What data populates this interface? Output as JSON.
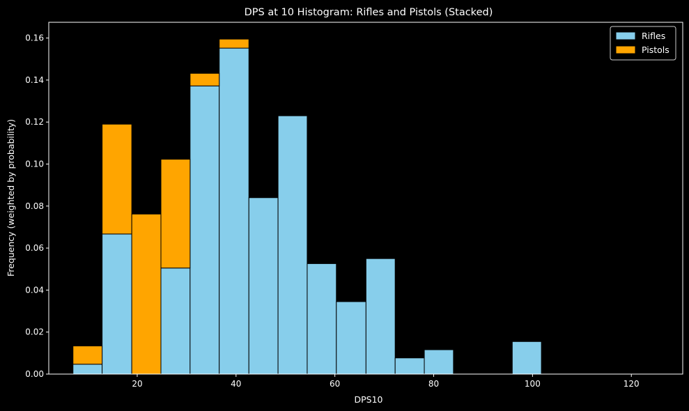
{
  "chart_data": {
    "type": "bar",
    "title": "DPS at 10 Histogram: Rifles and Pistols (Stacked)",
    "xlabel": "DPS10",
    "ylabel": "Frequency (weighted by probability)",
    "stacked": true,
    "bin_edges": [
      7.0,
      12.9,
      18.9,
      24.8,
      30.7,
      36.6,
      42.6,
      48.5,
      54.4,
      60.3,
      66.3,
      72.2,
      78.1,
      84.0,
      90.0,
      95.9,
      101.8,
      107.7,
      113.7,
      119.6,
      125.5
    ],
    "series": [
      {
        "name": "Rifles",
        "values": [
          0.0047,
          0.0667,
          0.0,
          0.0505,
          0.1372,
          0.1552,
          0.084,
          0.123,
          0.0526,
          0.0345,
          0.055,
          0.0077,
          0.0116,
          0.0,
          0.0,
          0.0155,
          0.0,
          0.0,
          0.0,
          0.0
        ]
      },
      {
        "name": "Pistols",
        "values": [
          0.0087,
          0.0523,
          0.0762,
          0.0518,
          0.006,
          0.0043,
          0.0,
          0.0,
          0.0,
          0.0,
          0.0,
          0.0,
          0.0,
          0.0,
          0.0,
          0.0,
          0.0,
          0.0,
          0.0,
          0.0
        ]
      }
    ],
    "xlim": [
      2.1,
      130.4
    ],
    "ylim": [
      0,
      0.1675
    ],
    "xticks": [
      20,
      40,
      60,
      80,
      100,
      120
    ],
    "yticks": [
      0.0,
      0.02,
      0.04,
      0.06,
      0.08,
      0.1,
      0.12,
      0.14,
      0.16
    ],
    "xtick_labels": [
      "20",
      "40",
      "60",
      "80",
      "100",
      "120"
    ],
    "ytick_labels": [
      "0.00",
      "0.02",
      "0.04",
      "0.06",
      "0.08",
      "0.10",
      "0.12",
      "0.14",
      "0.16"
    ],
    "grid": false,
    "legend_position": "top-right",
    "colors": {
      "Rifles": "#87ceeb",
      "Pistols": "#ffa500",
      "edge": "#000000",
      "background": "#000000",
      "text": "#ffffff"
    }
  }
}
